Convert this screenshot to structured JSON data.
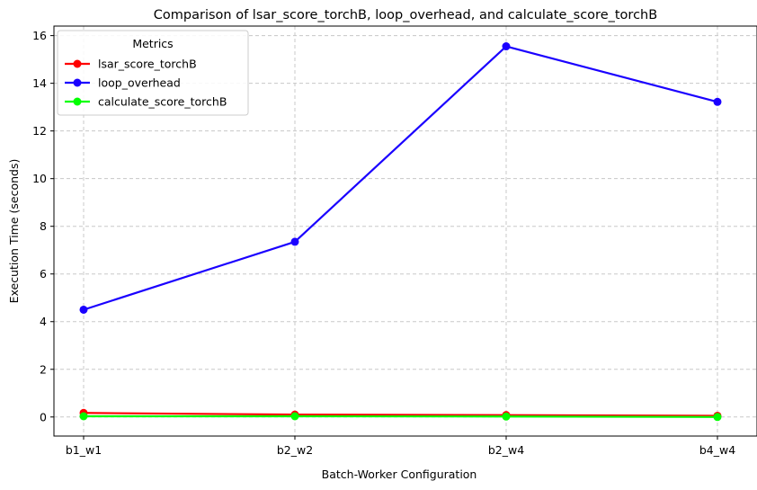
{
  "chart_data": {
    "type": "line",
    "title": "Comparison of lsar_score_torchB, loop_overhead, and calculate_score_torchB",
    "xlabel": "Batch-Worker Configuration",
    "ylabel": "Execution Time (seconds)",
    "categories": [
      "b1_w1",
      "b2_w2",
      "b2_w4",
      "b4_w4"
    ],
    "ylim": [
      -0.8,
      16.4
    ],
    "yticks": [
      0,
      2,
      4,
      6,
      8,
      10,
      12,
      14,
      16
    ],
    "grid": true,
    "legend": {
      "title": "Metrics",
      "placement": "top-left"
    },
    "series": [
      {
        "name": "lsar_score_torchB",
        "color": "#ff0000",
        "values": [
          0.17,
          0.1,
          0.08,
          0.05
        ]
      },
      {
        "name": "loop_overhead",
        "color": "#1a00ff",
        "values": [
          4.5,
          7.35,
          15.55,
          13.22
        ]
      },
      {
        "name": "calculate_score_torchB",
        "color": "#00ff00",
        "values": [
          0.03,
          0.03,
          0.02,
          0.0
        ]
      }
    ]
  }
}
